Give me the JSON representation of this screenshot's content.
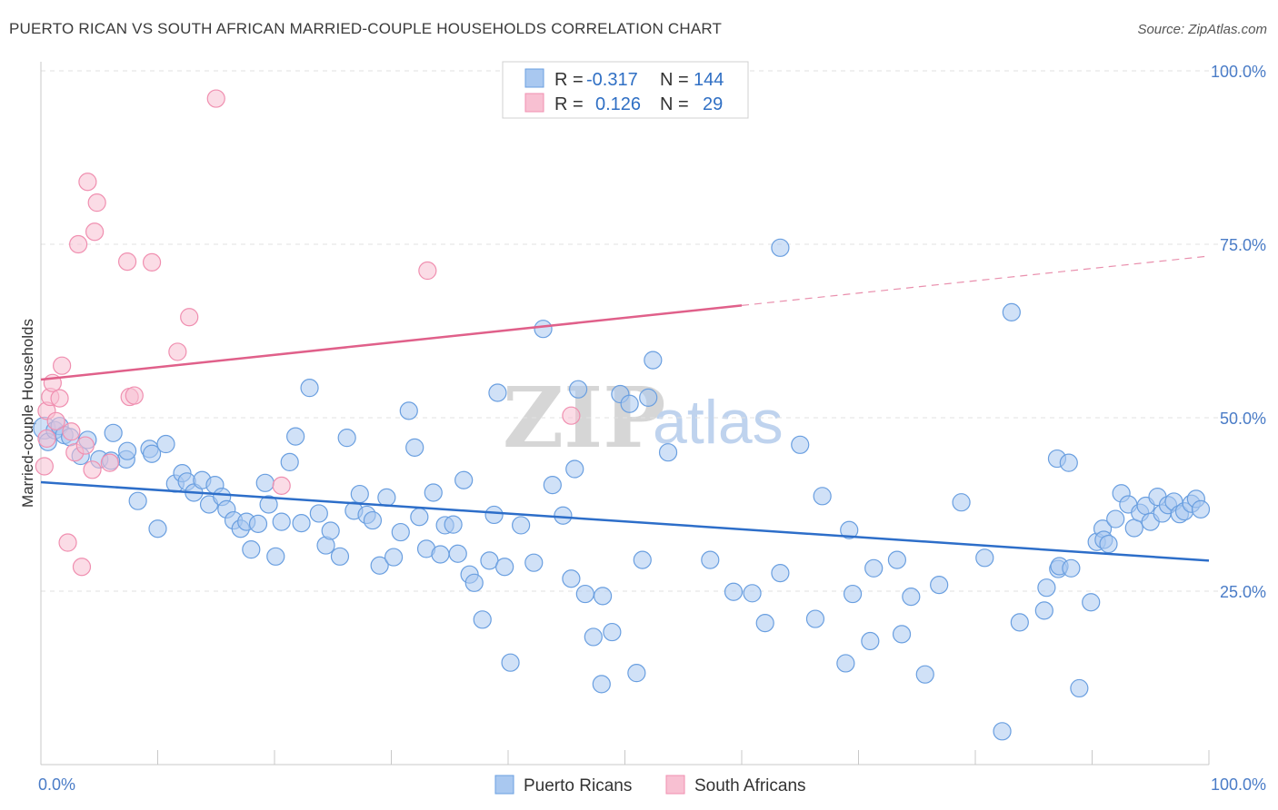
{
  "title": "PUERTO RICAN VS SOUTH AFRICAN MARRIED-COUPLE HOUSEHOLDS CORRELATION CHART",
  "source": "Source: ZipAtlas.com",
  "watermark": {
    "zip": "ZIP",
    "atlas": "atlas"
  },
  "colors": {
    "blue": "#6a9fe0",
    "blue_fill": "#a9c8f0",
    "blue_line": "#2d6ec9",
    "pink": "#f08fb0",
    "pink_fill": "#f8c0d2",
    "pink_line": "#e0608a",
    "tick_text": "#4a7cc7"
  },
  "legend": {
    "rows": [
      {
        "r_label": "R =",
        "r_value": "-0.317",
        "n_label": "N =",
        "n_value": "144"
      },
      {
        "r_label": "R =",
        "r_value": "0.126",
        "n_label": "N =",
        "n_value": "29"
      }
    ]
  },
  "bottom_legend": [
    "Puerto Ricans",
    "South Africans"
  ],
  "chart_data": {
    "type": "scatter",
    "title": "PUERTO RICAN VS SOUTH AFRICAN MARRIED-COUPLE HOUSEHOLDS CORRELATION CHART",
    "xlabel": "",
    "ylabel": "Married-couple Households",
    "xlim": [
      0,
      100
    ],
    "ylim": [
      0,
      100
    ],
    "x_tick_labels": [
      "0.0%",
      "100.0%"
    ],
    "y_tick_labels": [
      "25.0%",
      "50.0%",
      "75.0%",
      "100.0%"
    ],
    "y_ticks": [
      25,
      50,
      75,
      100
    ],
    "grid": true,
    "legend_position": "top-center",
    "series": [
      {
        "name": "Puerto Ricans",
        "trend": {
          "x": [
            0,
            100
          ],
          "y": [
            40.7,
            29.4
          ]
        },
        "points": [
          [
            0.3,
            48.5
          ],
          [
            0.6,
            46.5
          ],
          [
            1.2,
            48.2
          ],
          [
            1.6,
            48.8
          ],
          [
            2.0,
            47.5
          ],
          [
            2.5,
            47.2
          ],
          [
            3.4,
            44.5
          ],
          [
            4.0,
            46.8
          ],
          [
            5.0,
            44.0
          ],
          [
            6.2,
            47.8
          ],
          [
            7.3,
            44.0
          ],
          [
            7.4,
            45.2
          ],
          [
            8.3,
            38.0
          ],
          [
            9.3,
            45.5
          ],
          [
            9.5,
            44.8
          ],
          [
            10.0,
            34.0
          ],
          [
            10.7,
            46.2
          ],
          [
            11.5,
            40.5
          ],
          [
            12.1,
            42.0
          ],
          [
            12.5,
            40.8
          ],
          [
            13.1,
            39.2
          ],
          [
            13.8,
            41.0
          ],
          [
            14.4,
            37.5
          ],
          [
            14.9,
            40.3
          ],
          [
            15.5,
            38.6
          ],
          [
            15.9,
            36.8
          ],
          [
            16.5,
            35.2
          ],
          [
            17.1,
            34.0
          ],
          [
            17.6,
            35.0
          ],
          [
            18.0,
            31.0
          ],
          [
            18.6,
            34.7
          ],
          [
            19.2,
            40.6
          ],
          [
            19.5,
            37.5
          ],
          [
            20.1,
            30.0
          ],
          [
            20.6,
            35.0
          ],
          [
            21.3,
            43.6
          ],
          [
            21.8,
            47.3
          ],
          [
            22.3,
            34.8
          ],
          [
            23.0,
            54.3
          ],
          [
            23.8,
            36.2
          ],
          [
            24.4,
            31.6
          ],
          [
            24.8,
            33.7
          ],
          [
            25.6,
            30.0
          ],
          [
            26.2,
            47.1
          ],
          [
            26.8,
            36.6
          ],
          [
            27.3,
            39.0
          ],
          [
            27.9,
            36.0
          ],
          [
            28.4,
            35.2
          ],
          [
            29.0,
            28.7
          ],
          [
            29.6,
            38.5
          ],
          [
            30.2,
            29.9
          ],
          [
            30.8,
            33.5
          ],
          [
            31.5,
            51.0
          ],
          [
            32.0,
            45.7
          ],
          [
            32.4,
            35.7
          ],
          [
            33.0,
            31.1
          ],
          [
            33.6,
            39.2
          ],
          [
            34.2,
            30.3
          ],
          [
            34.6,
            34.5
          ],
          [
            35.3,
            34.6
          ],
          [
            35.7,
            30.4
          ],
          [
            36.2,
            41.0
          ],
          [
            36.7,
            27.4
          ],
          [
            37.1,
            26.2
          ],
          [
            37.8,
            20.9
          ],
          [
            38.4,
            29.4
          ],
          [
            38.8,
            36.0
          ],
          [
            39.1,
            53.6
          ],
          [
            39.7,
            28.5
          ],
          [
            40.2,
            14.7
          ],
          [
            41.1,
            34.5
          ],
          [
            42.2,
            29.1
          ],
          [
            43.0,
            62.8
          ],
          [
            43.8,
            40.3
          ],
          [
            44.7,
            35.9
          ],
          [
            45.4,
            26.8
          ],
          [
            45.7,
            42.6
          ],
          [
            46.0,
            54.1
          ],
          [
            46.6,
            24.6
          ],
          [
            47.3,
            18.4
          ],
          [
            48.0,
            11.6
          ],
          [
            48.1,
            24.3
          ],
          [
            48.9,
            19.1
          ],
          [
            49.6,
            53.4
          ],
          [
            50.4,
            52.0
          ],
          [
            51.0,
            13.2
          ],
          [
            51.5,
            29.5
          ],
          [
            52.0,
            52.9
          ],
          [
            52.4,
            58.3
          ],
          [
            53.7,
            45.0
          ],
          [
            63.3,
            74.5
          ],
          [
            57.3,
            29.5
          ],
          [
            59.3,
            24.9
          ],
          [
            60.9,
            24.7
          ],
          [
            62.0,
            20.4
          ],
          [
            63.3,
            27.6
          ],
          [
            65.0,
            46.1
          ],
          [
            66.3,
            21.0
          ],
          [
            66.9,
            38.7
          ],
          [
            68.9,
            14.6
          ],
          [
            69.2,
            33.8
          ],
          [
            69.5,
            24.6
          ],
          [
            71.0,
            17.8
          ],
          [
            71.3,
            28.3
          ],
          [
            73.3,
            29.5
          ],
          [
            73.7,
            18.8
          ],
          [
            74.5,
            24.2
          ],
          [
            75.7,
            13.0
          ],
          [
            76.9,
            25.9
          ],
          [
            78.8,
            37.8
          ],
          [
            80.8,
            29.8
          ],
          [
            82.3,
            4.8
          ],
          [
            83.1,
            65.2
          ],
          [
            83.8,
            20.5
          ],
          [
            85.9,
            22.2
          ],
          [
            86.1,
            25.5
          ],
          [
            87.0,
            44.1
          ],
          [
            87.1,
            28.2
          ],
          [
            87.2,
            28.6
          ],
          [
            88.0,
            43.5
          ],
          [
            88.2,
            28.3
          ],
          [
            88.9,
            11.0
          ],
          [
            89.9,
            23.4
          ],
          [
            90.4,
            32.1
          ],
          [
            90.9,
            34.0
          ],
          [
            91.0,
            32.4
          ],
          [
            91.4,
            31.8
          ],
          [
            92.0,
            35.4
          ],
          [
            92.5,
            39.1
          ],
          [
            93.1,
            37.5
          ],
          [
            93.6,
            34.1
          ],
          [
            94.1,
            36.3
          ],
          [
            94.6,
            37.3
          ],
          [
            95.0,
            35.0
          ],
          [
            95.6,
            38.6
          ],
          [
            96.0,
            36.2
          ],
          [
            96.5,
            37.4
          ],
          [
            97.0,
            37.9
          ],
          [
            97.5,
            36.1
          ],
          [
            97.9,
            36.5
          ],
          [
            98.5,
            37.6
          ],
          [
            98.9,
            38.3
          ],
          [
            99.3,
            36.8
          ],
          [
            6.0,
            43.8
          ]
        ]
      },
      {
        "name": "South Africans",
        "trend": {
          "x": [
            0,
            100
          ],
          "y": [
            55.5,
            73.3
          ]
        },
        "points": [
          [
            0.3,
            43.0
          ],
          [
            0.5,
            51.0
          ],
          [
            0.8,
            53.0
          ],
          [
            1.0,
            55.0
          ],
          [
            1.3,
            49.5
          ],
          [
            1.6,
            52.8
          ],
          [
            1.8,
            57.5
          ],
          [
            2.3,
            32.0
          ],
          [
            2.6,
            48.0
          ],
          [
            2.9,
            45.0
          ],
          [
            3.2,
            75.0
          ],
          [
            3.5,
            28.5
          ],
          [
            3.8,
            46.0
          ],
          [
            4.0,
            84.0
          ],
          [
            4.4,
            42.5
          ],
          [
            4.6,
            76.8
          ],
          [
            4.8,
            81.0
          ],
          [
            5.9,
            43.5
          ],
          [
            7.4,
            72.5
          ],
          [
            7.6,
            53.0
          ],
          [
            8.0,
            53.2
          ],
          [
            9.5,
            72.4
          ],
          [
            11.7,
            59.5
          ],
          [
            12.7,
            64.5
          ],
          [
            15.0,
            96.0
          ],
          [
            20.6,
            40.2
          ],
          [
            33.1,
            71.2
          ],
          [
            45.4,
            50.3
          ],
          [
            0.5,
            47.0
          ]
        ]
      }
    ]
  }
}
